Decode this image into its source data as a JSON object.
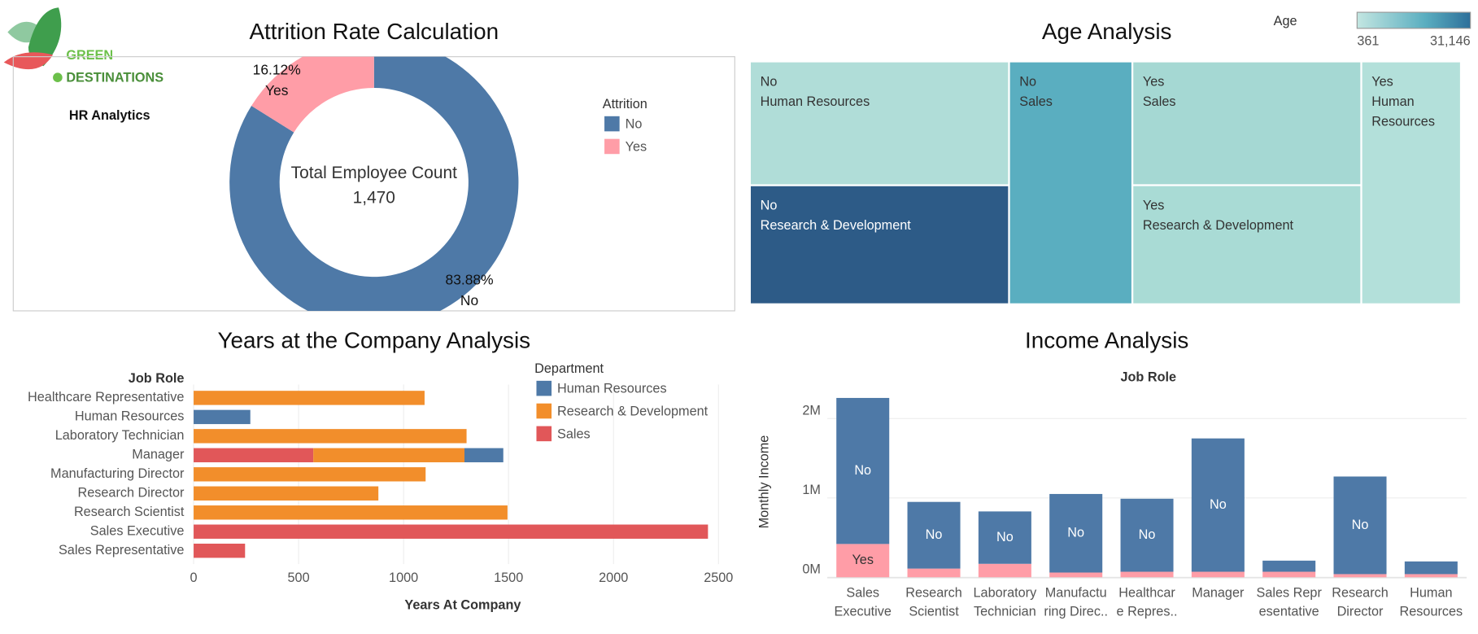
{
  "logo": {
    "line1": "GREEN",
    "line2": "DESTINATIONS",
    "subtitle": "HR Analytics"
  },
  "chart_data": [
    {
      "type": "donut",
      "title": "Attrition Rate Calculation",
      "center_label": "Total Employee Count",
      "total": {
        "value": 1470,
        "label": "1,470"
      },
      "legend_title": "Attrition",
      "categories": [
        "No",
        "Yes"
      ],
      "values": [
        83.88,
        16.12
      ],
      "value_labels": [
        "83.88%",
        "16.12%"
      ],
      "colors": [
        "#4e79a7",
        "#ff9da7"
      ]
    },
    {
      "type": "treemap",
      "title": "Age Analysis",
      "color_title": "Age",
      "color_ticks": [
        {
          "value": 361,
          "label": "361"
        },
        {
          "value": 31146,
          "label": "31,146"
        }
      ],
      "attrition": [
        "No",
        "No",
        "No",
        "Yes",
        "Yes",
        "Yes"
      ],
      "department": [
        "Human Resources",
        "Research & Development",
        "Sales",
        "Sales",
        "Research & Development",
        "Human Resources"
      ],
      "values": [
        35800,
        34400,
        33400,
        31600,
        30400,
        27000
      ],
      "colors": [
        "#b0ddd8",
        "#2d5b87",
        "#5aaec0",
        "#a5d8d3",
        "#a9dbd5",
        "#b3e0da"
      ]
    },
    {
      "type": "hbar",
      "stacked": true,
      "title": "Years at the Company Analysis",
      "y_header": "Job Role",
      "xlabel": "Years At Company",
      "legend_title": "Department",
      "categories": [
        "Healthcare Representative",
        "Human Resources",
        "Laboratory Technician",
        "Manager",
        "Manufacturing Director",
        "Research Director",
        "Research Scientist",
        "Sales Executive",
        "Sales Representative"
      ],
      "series": [
        {
          "name": "Human Resources",
          "color": "#4e79a7",
          "values": [
            null,
            270,
            null,
            185,
            null,
            null,
            null,
            null,
            null
          ]
        },
        {
          "name": "Research & Development",
          "color": "#f28e2b",
          "values": [
            1100,
            null,
            1300,
            720,
            1105,
            880,
            1495,
            null,
            null
          ]
        },
        {
          "name": "Sales",
          "color": "#e15759",
          "values": [
            null,
            null,
            null,
            570,
            null,
            null,
            null,
            2450,
            245
          ]
        }
      ],
      "xlim": [
        0,
        2510
      ],
      "xticks": [
        0,
        500,
        1000,
        1500,
        2000,
        2500
      ],
      "grid": true
    },
    {
      "type": "bar",
      "stacked": true,
      "title": "Income Analysis",
      "x_header": "Job Role",
      "ylabel": "Monthly Income",
      "categories": [
        [
          "Sales",
          "Executive"
        ],
        [
          "Research",
          "Scientist"
        ],
        [
          "Laboratory",
          "Technician"
        ],
        [
          "Manufactu",
          "ring Direc.."
        ],
        [
          "Healthcar",
          "e Repres.."
        ],
        [
          "Manager"
        ],
        [
          "Sales Repr",
          "esentative"
        ],
        [
          "Research",
          "Director"
        ],
        [
          "Human",
          "Resources"
        ]
      ],
      "series": [
        {
          "name": "Yes",
          "color": "#ff9da7",
          "values": [
            420000,
            110000,
            170000,
            60000,
            70000,
            70000,
            70000,
            40000,
            40000
          ]
        },
        {
          "name": "No",
          "color": "#4e79a7",
          "values": [
            1840000,
            840000,
            660000,
            990000,
            920000,
            1680000,
            140000,
            1230000,
            160000
          ]
        }
      ],
      "ylim": [
        0,
        2400000
      ],
      "yticks": [
        {
          "value": 0,
          "label": "0M"
        },
        {
          "value": 1000000,
          "label": "1M"
        },
        {
          "value": 2000000,
          "label": "2M"
        }
      ],
      "grid": true
    }
  ]
}
